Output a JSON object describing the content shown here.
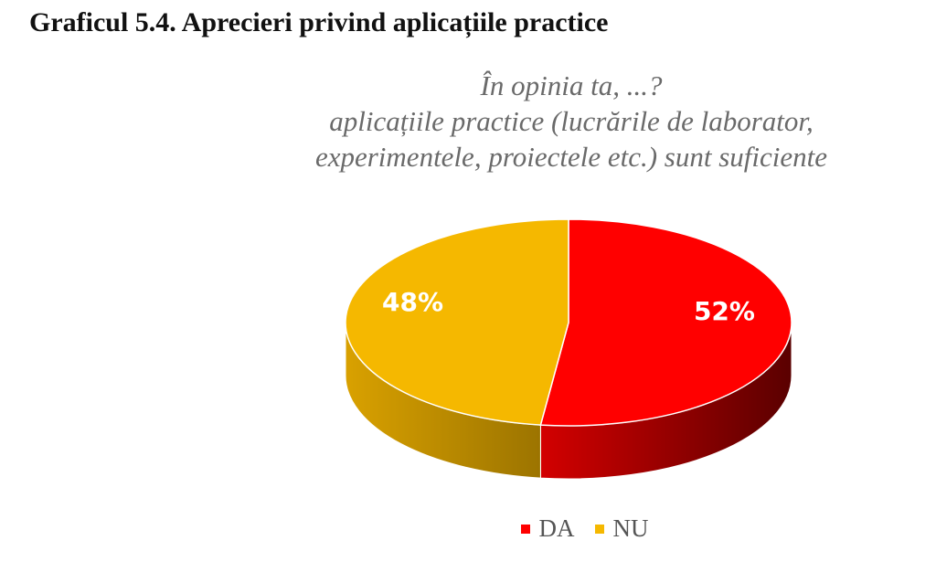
{
  "figure_title": "Graficul 5.4. Aprecieri privind aplicațiile practice",
  "chart_data": {
    "type": "pie",
    "title_lines": [
      "În opinia ta,  ...?",
      "aplicațiile practice (lucrările de laborator,",
      "experimentele, proiectele etc.) sunt suficiente"
    ],
    "categories": [
      "DA",
      "NU"
    ],
    "values": [
      52,
      48
    ],
    "data_labels": [
      "52%",
      "48%"
    ],
    "colors": {
      "DA": "#ff0000",
      "NU": "#f5b800"
    },
    "side_colors": {
      "DA": [
        "#d30000",
        "#5a0000"
      ],
      "NU": [
        "#d9a100",
        "#9c7400"
      ]
    },
    "legend_position": "bottom",
    "style": "3d"
  }
}
